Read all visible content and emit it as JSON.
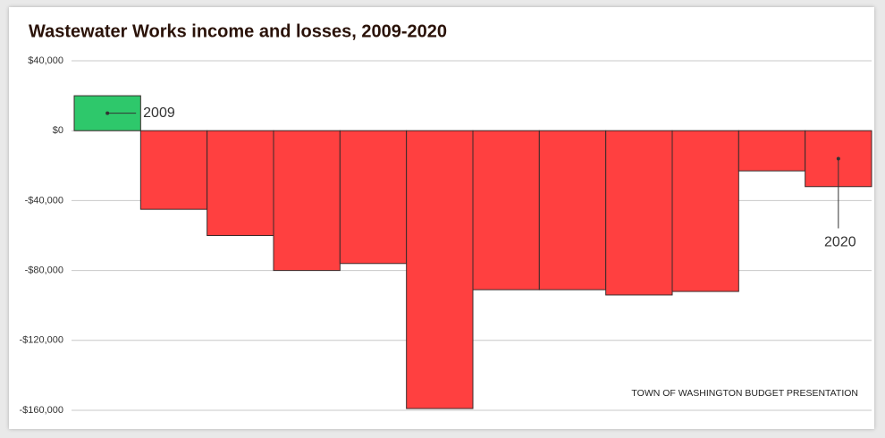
{
  "chart_data": {
    "type": "bar",
    "title": "Wastewater Works income and losses, 2009-2020",
    "source": "TOWN OF WASHINGTON BUDGET PRESENTATION",
    "categories": [
      "2009",
      null,
      null,
      null,
      null,
      null,
      null,
      null,
      null,
      null,
      null,
      "2020"
    ],
    "values": [
      20000,
      -45000,
      -60000,
      -80000,
      -76000,
      -159000,
      -91000,
      -91000,
      -94000,
      -92000,
      -23000,
      -32000
    ],
    "positive_color": "#2ec86b",
    "negative_color": "#ff4040",
    "ylim": [
      -160000,
      40000
    ],
    "yticks": [
      {
        "value": 40000,
        "label": "$40,000"
      },
      {
        "value": 0,
        "label": "$0"
      },
      {
        "value": -40000,
        "label": "-$40,000"
      },
      {
        "value": -80000,
        "label": "-$80,000"
      },
      {
        "value": -120000,
        "label": "-$120,000"
      },
      {
        "value": -160000,
        "label": "-$160,000"
      }
    ],
    "grid": true
  }
}
